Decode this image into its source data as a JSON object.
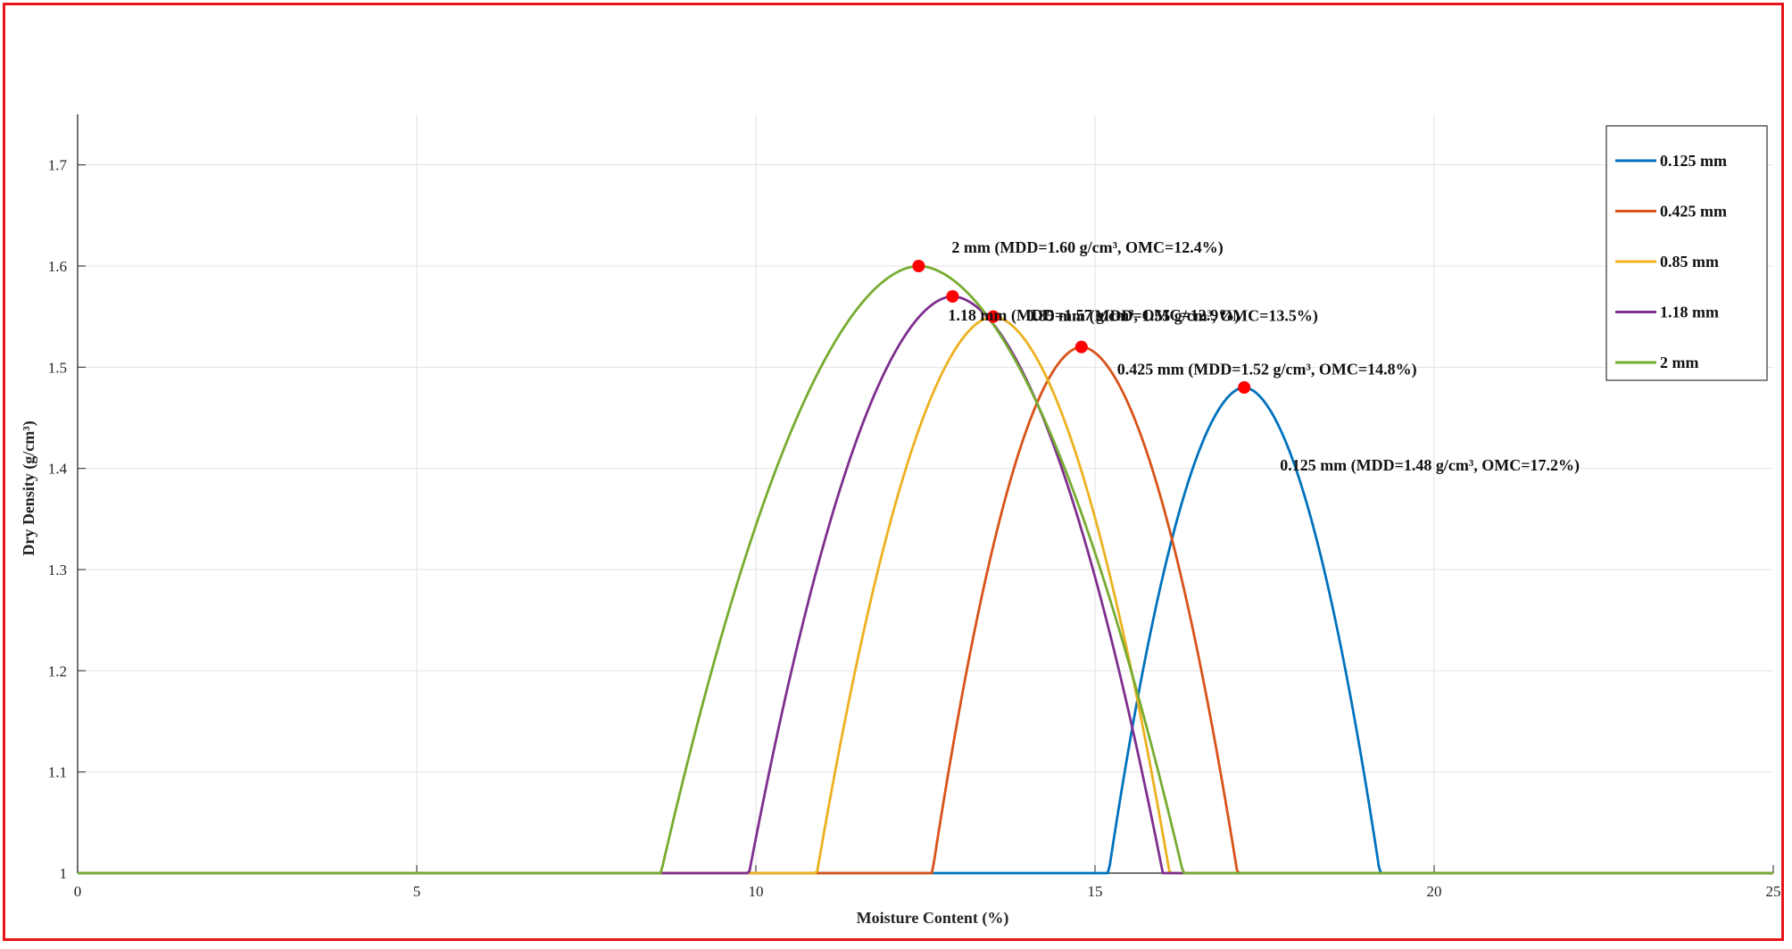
{
  "chart_data": {
    "type": "line",
    "title": "",
    "xlabel": "Moisture Content (%)",
    "ylabel": "Dry Density (g/cm³)",
    "xlim": [
      0,
      25
    ],
    "ylim": [
      1,
      1.75
    ],
    "xticks": [
      0,
      5,
      10,
      15,
      20,
      25
    ],
    "yticks": [
      1,
      1.1,
      1.2,
      1.3,
      1.4,
      1.5,
      1.6,
      1.7
    ],
    "xtick_labels": [
      "0",
      "5",
      "10",
      "15",
      "20",
      "25"
    ],
    "ytick_labels": [
      "1",
      "1.1",
      "1.2",
      "1.3",
      "1.4",
      "1.5",
      "1.6",
      "1.7"
    ],
    "grid": true,
    "legend_position": "top-right",
    "series": [
      {
        "name": "0.125 mm",
        "color": "#0072bd",
        "peak_x": 17.2,
        "peak_y": 1.48,
        "x_start": 15.2,
        "x_end": 19.2,
        "annotation": "0.125 mm (MDD=1.48 g/cm³, OMC=17.2%)"
      },
      {
        "name": "0.425 mm",
        "color": "#d95319",
        "peak_x": 14.8,
        "peak_y": 1.52,
        "x_start": 12.6,
        "x_end": 17.1,
        "annotation": "0.425 mm (MDD=1.52 g/cm³, OMC=14.8%)"
      },
      {
        "name": "0.85 mm",
        "color": "#edb120",
        "peak_x": 13.5,
        "peak_y": 1.55,
        "x_start": 10.9,
        "x_end": 16.1,
        "annotation": "0.85 mm (MDD=1.55 g/cm³, OMC=13.5%)"
      },
      {
        "name": "1.18 mm",
        "color": "#7e2f8e",
        "peak_x": 12.9,
        "peak_y": 1.57,
        "x_start": 9.9,
        "x_end": 16.0,
        "annotation": "1.18 mm (MDD=1.57 g/cm³, OMC=12.9%)"
      },
      {
        "name": "2 mm",
        "color": "#77ac30",
        "peak_x": 12.4,
        "peak_y": 1.6,
        "x_start": 8.6,
        "x_end": 16.3,
        "annotation": "2 mm (MDD=1.60 g/cm³, OMC=12.4%)"
      }
    ],
    "marker_color": "#ff0000"
  }
}
